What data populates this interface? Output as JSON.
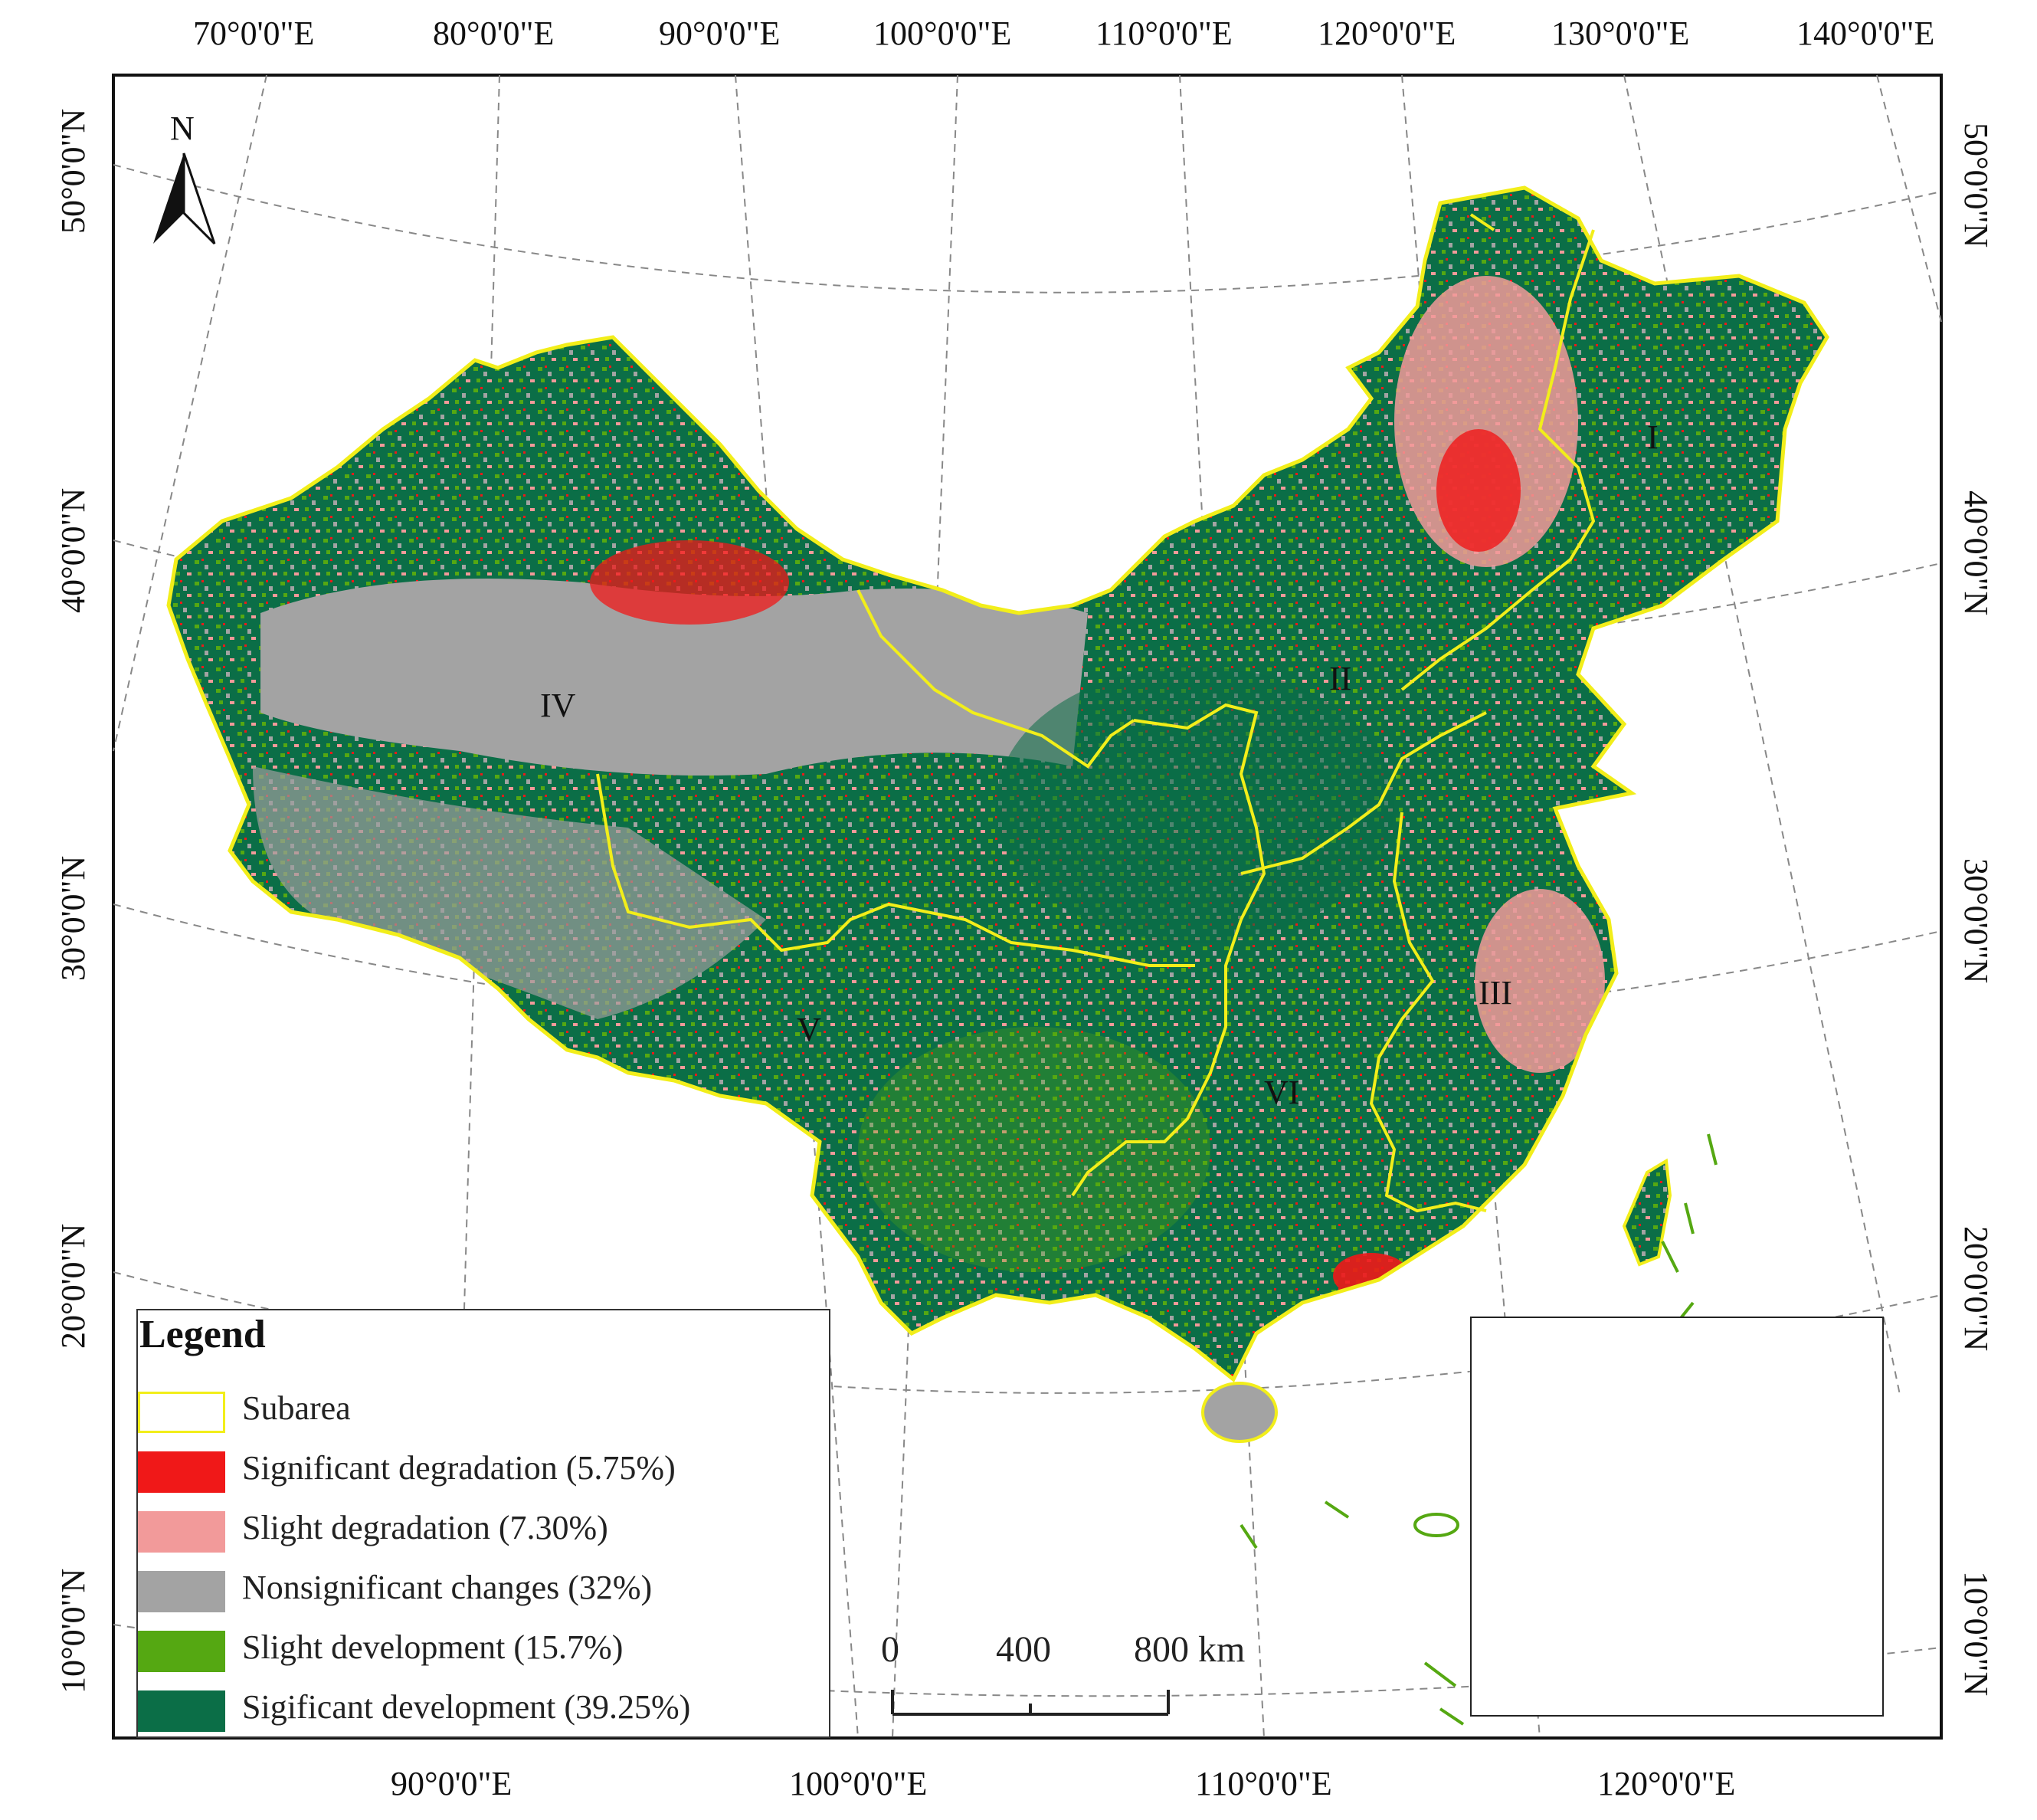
{
  "lon_top": [
    {
      "label": "70°0'0\"E"
    },
    {
      "label": "80°0'0\"E"
    },
    {
      "label": "90°0'0\"E"
    },
    {
      "label": "100°0'0\"E"
    },
    {
      "label": "110°0'0\"E"
    },
    {
      "label": "120°0'0\"E"
    },
    {
      "label": "130°0'0\"E"
    },
    {
      "label": "140°0'0\"E"
    }
  ],
  "lon_bottom": [
    {
      "label": "90°0'0\"E"
    },
    {
      "label": "100°0'0\"E"
    },
    {
      "label": "110°0'0\"E"
    },
    {
      "label": "120°0'0\"E"
    }
  ],
  "lat_left": [
    {
      "label": "50°0'0\"N"
    },
    {
      "label": "40°0'0\"N"
    },
    {
      "label": "30°0'0\"N"
    },
    {
      "label": "20°0'0\"N"
    },
    {
      "label": "10°0'0\"N"
    }
  ],
  "lat_right": [
    {
      "label": "50°0'0\"N"
    },
    {
      "label": "40°0'0\"N"
    },
    {
      "label": "30°0'0\"N"
    },
    {
      "label": "20°0'0\"N"
    },
    {
      "label": "10°0'0\"N"
    }
  ],
  "north_arrow": {
    "label": "N"
  },
  "regions": [
    "I",
    "II",
    "III",
    "IV",
    "V",
    "VI"
  ],
  "legend": {
    "title": "Legend",
    "items": [
      {
        "label": "Subarea",
        "color": "#ffffff",
        "border": "#f2ee1a"
      },
      {
        "label": "Significant degradation (5.75%)",
        "color": "#f01818"
      },
      {
        "label": "Slight degradation (7.30%)",
        "color": "#f29a9a"
      },
      {
        "label": "Nonsignificant changes (32%)",
        "color": "#a3a3a3"
      },
      {
        "label": "Slight development (15.7%)",
        "color": "#55a812"
      },
      {
        "label": "Sigificant development (39.25%)",
        "color": "#0b6e47"
      }
    ]
  },
  "scale_bar": {
    "labels": [
      "0",
      "400",
      "800 km"
    ]
  },
  "colors": {
    "boundary": "#f2ee1a",
    "sea_islands": "#29c7ef",
    "graticule": "#777777"
  }
}
